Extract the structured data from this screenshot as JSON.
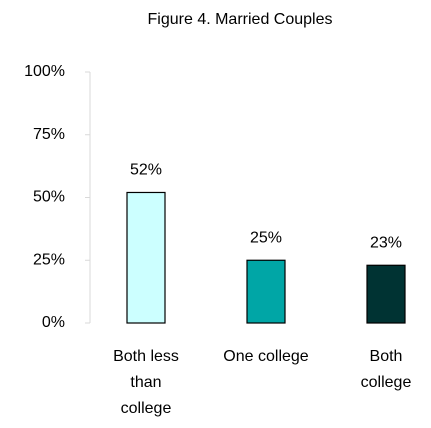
{
  "chart_data": {
    "type": "bar",
    "title": "Figure 4. Married Couples",
    "categories": [
      "Both less than college",
      "One college",
      "Both college"
    ],
    "values": [
      52,
      25,
      23
    ],
    "value_labels": [
      "52%",
      "25%",
      "23%"
    ],
    "colors": [
      "#ccffff",
      "#00a6a6",
      "#003333"
    ],
    "ylim": [
      0,
      100
    ],
    "yticks": [
      {
        "value": 0,
        "label": "0%"
      },
      {
        "value": 25,
        "label": "25%"
      },
      {
        "value": 50,
        "label": "50%"
      },
      {
        "value": 75,
        "label": "75%"
      },
      {
        "value": 100,
        "label": "100%"
      }
    ],
    "grid": false
  }
}
